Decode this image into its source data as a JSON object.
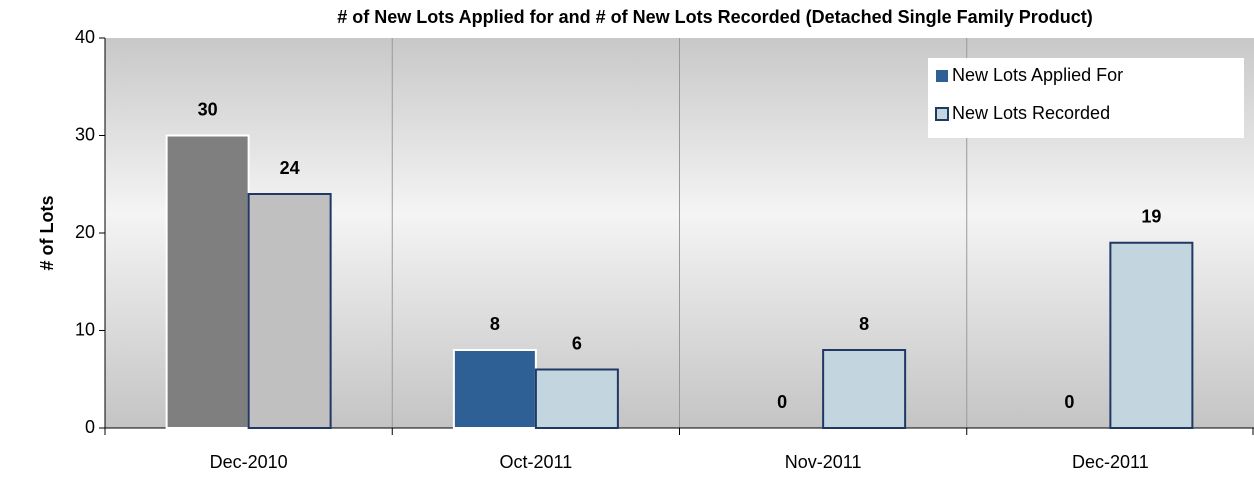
{
  "chart_data": {
    "type": "bar",
    "title": "# of New Lots Applied for and # of New Lots Recorded (Detached Single Family Product)",
    "ylabel": "# of Lots",
    "categories": [
      "Dec-2010",
      "Oct-2011",
      "Nov-2011",
      "Dec-2011"
    ],
    "series": [
      {
        "name": "New Lots Applied For",
        "color": "#2e6095",
        "edgecolor": "#ffffff",
        "colors": [
          "#7f7f7f",
          "#2e6095",
          "#2e6095",
          "#2e6095"
        ],
        "values": [
          30,
          8,
          0,
          0
        ]
      },
      {
        "name": "New Lots Recorded",
        "color": "#c3d5de",
        "edgecolor": "#1f3864",
        "colors": [
          "#c0c0c0",
          "#c3d5de",
          "#c3d5de",
          "#c3d5de"
        ],
        "values": [
          24,
          6,
          8,
          19
        ]
      }
    ],
    "ylim": [
      0,
      40
    ],
    "yticks": [
      0,
      10,
      20,
      30,
      40
    ],
    "legend": "upper right"
  }
}
